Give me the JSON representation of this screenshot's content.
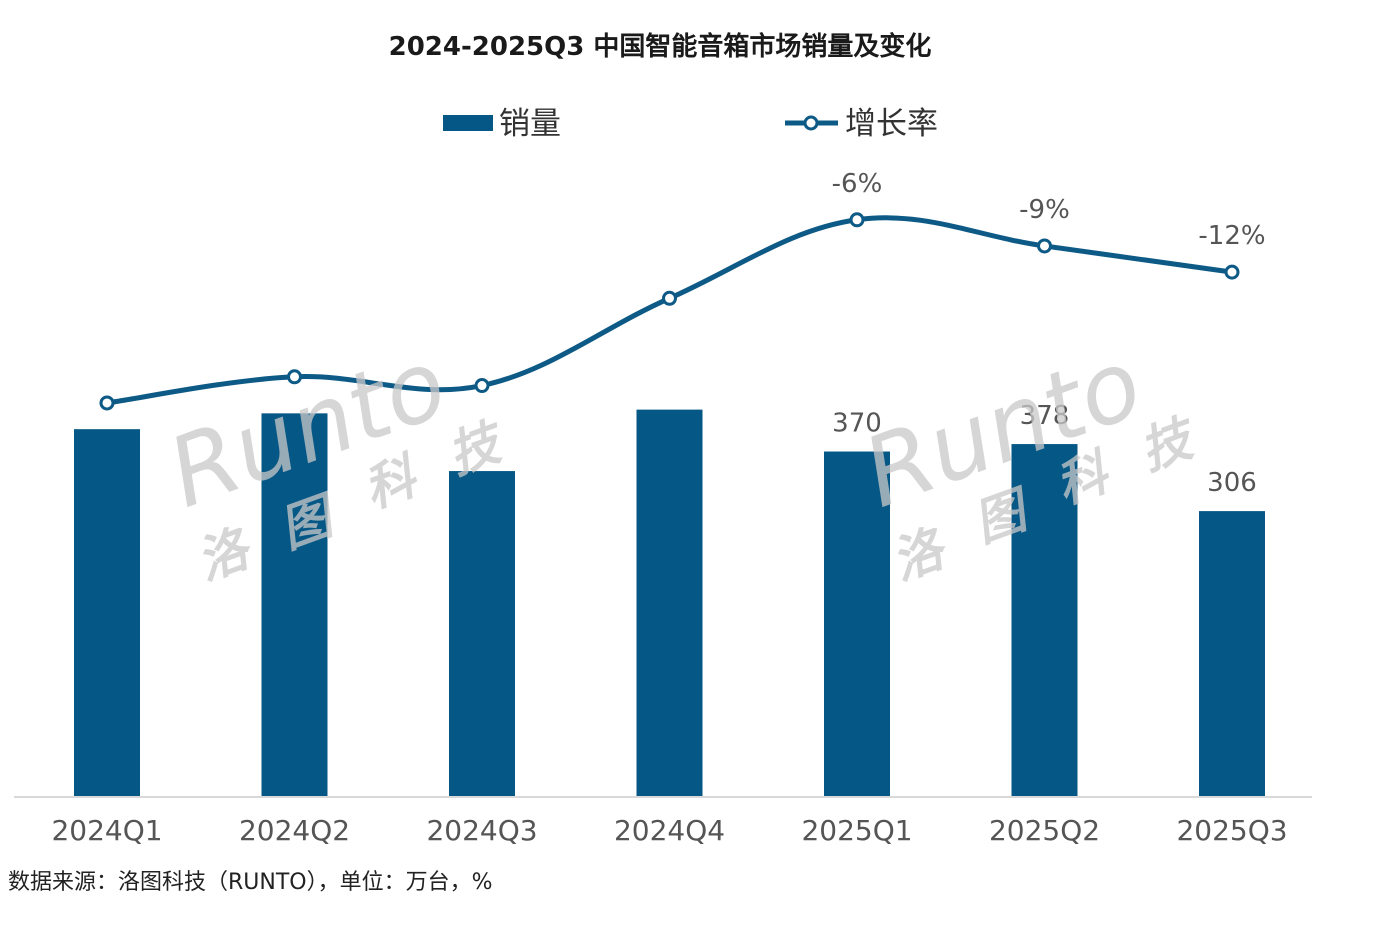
{
  "chart_data": {
    "type": "bar+line",
    "title": "2024-2025Q3 中国智能音箱市场销量及变化",
    "categories": [
      "2024Q1",
      "2024Q2",
      "2024Q3",
      "2024Q4",
      "2025Q1",
      "2025Q2",
      "2025Q3"
    ],
    "series": [
      {
        "name": "销量",
        "kind": "bar",
        "values": [
          394,
          411,
          349,
          415,
          370,
          378,
          306
        ],
        "labels": [
          "",
          "",
          "",
          "",
          "370",
          "378",
          "306"
        ]
      },
      {
        "name": "增长率",
        "kind": "line",
        "values": [
          -27,
          -24,
          -25,
          -15,
          -6,
          -9,
          -12
        ],
        "labels": [
          "",
          "",
          "",
          "",
          "-6%",
          "-9%",
          "-12%"
        ]
      }
    ],
    "bar_ylim": [
      0,
      580
    ],
    "line_ylim": [
      -45,
      2
    ],
    "legend_position": "top-center",
    "grid": false,
    "colors": {
      "bar": "#055786",
      "line": "#0e5a86"
    },
    "source_note": "数据来源：洛图科技（RUNTO），单位：万台，%",
    "watermark": {
      "text_latin": "Runto",
      "text_cn": [
        "洛",
        "图",
        "科",
        "技"
      ]
    }
  }
}
